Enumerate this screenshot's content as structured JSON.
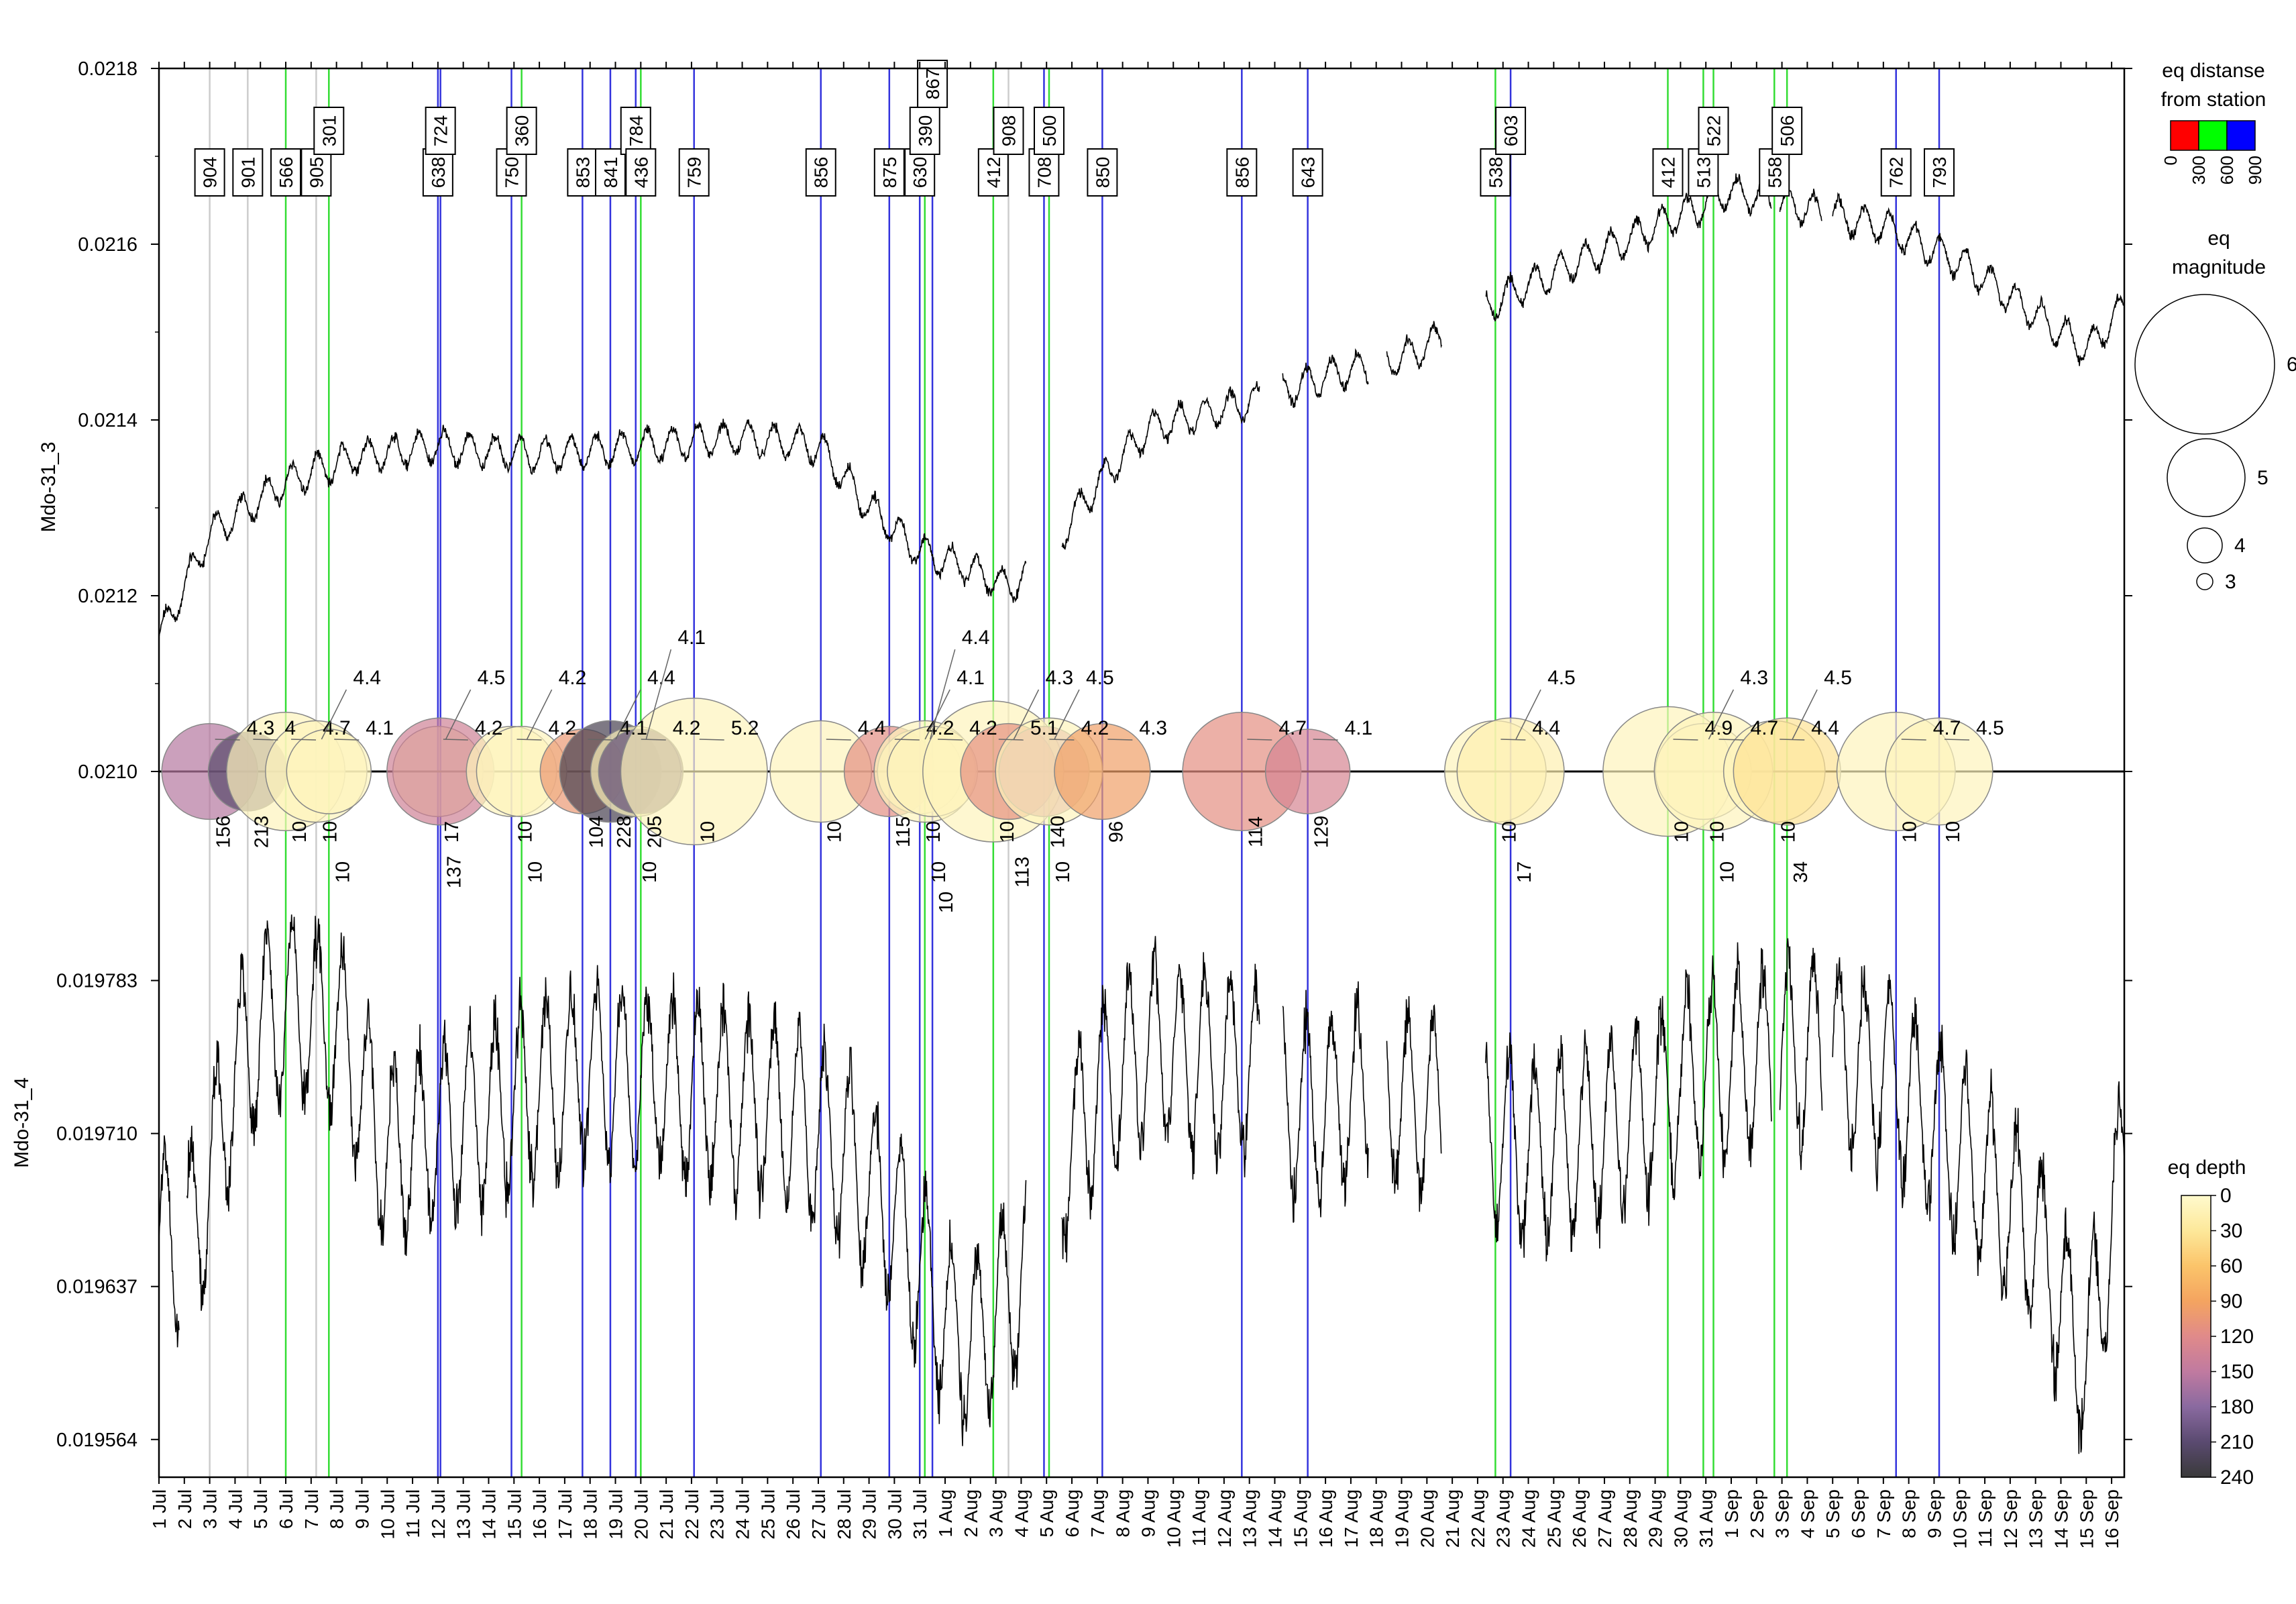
{
  "chart_data": {
    "type": "line",
    "x_range": [
      "1 Jul",
      "16 Sep"
    ],
    "x_day_range": [
      1,
      78.5
    ],
    "x_tick_labels": [
      "1 Jul",
      "2 Jul",
      "3 Jul",
      "4 Jul",
      "5 Jul",
      "6 Jul",
      "7 Jul",
      "8 Jul",
      "9 Jul",
      "10 Jul",
      "11 Jul",
      "12 Jul",
      "13 Jul",
      "14 Jul",
      "15 Jul",
      "16 Jul",
      "17 Jul",
      "18 Jul",
      "19 Jul",
      "20 Jul",
      "21 Jul",
      "22 Jul",
      "23 Jul",
      "24 Jul",
      "25 Jul",
      "26 Jul",
      "27 Jul",
      "28 Jul",
      "29 Jul",
      "30 Jul",
      "31 Jul",
      "1 Aug",
      "2 Aug",
      "3 Aug",
      "4 Aug",
      "5 Aug",
      "6 Aug",
      "7 Aug",
      "8 Aug",
      "9 Aug",
      "10 Aug",
      "11 Aug",
      "12 Aug",
      "13 Aug",
      "14 Aug",
      "15 Aug",
      "16 Aug",
      "17 Aug",
      "18 Aug",
      "19 Aug",
      "20 Aug",
      "21 Aug",
      "22 Aug",
      "23 Aug",
      "24 Aug",
      "25 Aug",
      "26 Aug",
      "27 Aug",
      "28 Aug",
      "29 Aug",
      "30 Aug",
      "31 Aug",
      "1 Sep",
      "2 Sep",
      "3 Sep",
      "4 Sep",
      "5 Sep",
      "6 Sep",
      "7 Sep",
      "8 Sep",
      "9 Sep",
      "10 Sep",
      "11 Sep",
      "12 Sep",
      "13 Sep",
      "14 Sep",
      "15 Sep",
      "16 Sep"
    ],
    "y_tick_labels": [
      "0.0218",
      "0.0216",
      "0.0214",
      "0.0212",
      "0.0210",
      "0.019783",
      "0.019710",
      "0.019637",
      "0.019564"
    ],
    "panels": [
      {
        "name": "Mdo-31_3",
        "ylabel": "Mdo-31_3",
        "ylim": [
          0.021,
          0.0218
        ],
        "ticks": [
          0.0218,
          0.0216,
          0.0214,
          0.0212,
          0.021
        ]
      },
      {
        "name": "Mdo-31_4",
        "ylabel": "Mdo-31_4",
        "ylim": [
          0.019546,
          0.01982
        ],
        "ticks": [
          0.019783,
          0.01971,
          0.019637,
          0.019564
        ]
      }
    ],
    "series": [
      {
        "name": "Mdo-31_3",
        "description": "slow rise with diurnal oscillation",
        "trend_days": [
          1,
          3,
          6,
          9,
          12,
          16,
          20,
          24,
          27,
          29,
          31,
          33,
          34.5,
          36,
          37.5,
          40,
          44,
          47,
          50,
          52,
          54,
          57,
          60,
          63,
          66,
          69,
          72,
          75,
          77,
          78.5
        ],
        "trend_values": [
          0.02115,
          0.02127,
          0.02133,
          0.02136,
          0.02137,
          0.02136,
          0.02137,
          0.02138,
          0.02137,
          0.0213,
          0.02125,
          0.02123,
          0.02121,
          0.02124,
          0.02131,
          0.02139,
          0.02142,
          0.02145,
          0.02147,
          0.0215,
          0.02154,
          0.02158,
          0.02162,
          0.02166,
          0.02164,
          0.02162,
          0.02158,
          0.02152,
          0.02148,
          0.02153
        ],
        "gaps": [
          [
            35.2,
            36.6
          ],
          [
            44.4,
            45.3
          ],
          [
            48.7,
            49.4
          ],
          [
            51.6,
            53.3
          ],
          [
            64.6,
            64.9
          ],
          [
            66.6,
            67.0
          ]
        ]
      },
      {
        "name": "Mdo-31_4",
        "description": "strong diurnal oscillation",
        "trend_days": [
          1,
          2,
          3,
          4,
          5,
          6,
          8,
          10,
          14,
          18,
          22,
          26,
          28,
          30,
          32,
          33,
          35,
          36,
          38,
          40,
          44,
          46,
          49,
          52,
          55,
          58,
          62,
          66,
          69,
          72,
          75,
          77,
          78.5
        ],
        "trend_values": [
          0.019658,
          0.01965,
          0.01969,
          0.01974,
          0.01976,
          0.01977,
          0.01976,
          0.0197,
          0.01972,
          0.01974,
          0.01973,
          0.01972,
          0.0197,
          0.01967,
          0.01962,
          0.01961,
          0.01964,
          0.01968,
          0.01973,
          0.01975,
          0.01974,
          0.01972,
          0.01973,
          0.01972,
          0.0197,
          0.01971,
          0.01974,
          0.01975,
          0.01974,
          0.0197,
          0.01966,
          0.0196,
          0.0197
        ],
        "gaps": [
          [
            1.8,
            2.1
          ],
          [
            35.2,
            36.6
          ],
          [
            44.4,
            45.3
          ],
          [
            48.7,
            49.4
          ],
          [
            51.6,
            53.3
          ],
          [
            64.6,
            64.9
          ],
          [
            66.6,
            67.0
          ]
        ]
      }
    ],
    "earthquakes": [
      {
        "day": 3.0,
        "distance": 904,
        "depth": 156,
        "magnitude": 4.3
      },
      {
        "day": 4.5,
        "distance": 901,
        "depth": 213,
        "magnitude": 4.0
      },
      {
        "day": 6.0,
        "distance": 566,
        "depth": 10,
        "magnitude": 4.7
      },
      {
        "day": 7.2,
        "distance": 905,
        "depth": 10,
        "magnitude": 4.4
      },
      {
        "day": 7.7,
        "distance": 301,
        "depth": 10,
        "magnitude": 4.1
      },
      {
        "day": 12.0,
        "distance": 638,
        "depth": 17,
        "magnitude": 4.2
      },
      {
        "day": 12.1,
        "distance": 724,
        "depth": 137,
        "magnitude": 4.5
      },
      {
        "day": 14.9,
        "distance": 750,
        "depth": 10,
        "magnitude": 4.2
      },
      {
        "day": 15.3,
        "distance": 360,
        "depth": 10,
        "magnitude": 4.2
      },
      {
        "day": 17.7,
        "distance": 853,
        "depth": 104,
        "magnitude": 4.1
      },
      {
        "day": 18.8,
        "distance": 841,
        "depth": 228,
        "magnitude": 4.4
      },
      {
        "day": 19.8,
        "distance": 784,
        "depth": 10,
        "magnitude": 4.2
      },
      {
        "day": 20.0,
        "distance": 436,
        "depth": 205,
        "magnitude": 4.1
      },
      {
        "day": 22.1,
        "distance": 759,
        "depth": 10,
        "magnitude": 5.2
      },
      {
        "day": 27.1,
        "distance": 856,
        "depth": 10,
        "magnitude": 4.4
      },
      {
        "day": 29.8,
        "distance": 875,
        "depth": 115,
        "magnitude": 4.2
      },
      {
        "day": 31.0,
        "distance": 630,
        "depth": 10,
        "magnitude": 4.1
      },
      {
        "day": 31.2,
        "distance": 390,
        "depth": 10,
        "magnitude": 4.4
      },
      {
        "day": 31.5,
        "distance": 867,
        "depth": 10,
        "magnitude": 4.2
      },
      {
        "day": 33.9,
        "distance": 412,
        "depth": 10,
        "magnitude": 5.1
      },
      {
        "day": 34.5,
        "distance": 908,
        "depth": 113,
        "magnitude": 4.3
      },
      {
        "day": 35.9,
        "distance": 708,
        "depth": 140,
        "magnitude": 4.2
      },
      {
        "day": 36.1,
        "distance": 500,
        "depth": 10,
        "magnitude": 4.5
      },
      {
        "day": 38.2,
        "distance": 850,
        "depth": 96,
        "magnitude": 4.3
      },
      {
        "day": 43.7,
        "distance": 856,
        "depth": 114,
        "magnitude": 4.7
      },
      {
        "day": 46.3,
        "distance": 643,
        "depth": 129,
        "magnitude": 4.1
      },
      {
        "day": 53.7,
        "distance": 538,
        "depth": 10,
        "magnitude": 4.4
      },
      {
        "day": 54.3,
        "distance": 603,
        "depth": 17,
        "magnitude": 4.5
      },
      {
        "day": 60.5,
        "distance": 412,
        "depth": 10,
        "magnitude": 4.9
      },
      {
        "day": 61.9,
        "distance": 513,
        "depth": 10,
        "magnitude": 4.3
      },
      {
        "day": 62.3,
        "distance": 522,
        "depth": 10,
        "magnitude": 4.7
      },
      {
        "day": 64.7,
        "distance": 558,
        "depth": 10,
        "magnitude": 4.4
      },
      {
        "day": 65.2,
        "distance": 506,
        "depth": 34,
        "magnitude": 4.5
      },
      {
        "day": 69.5,
        "distance": 762,
        "depth": 10,
        "magnitude": 4.7
      },
      {
        "day": 71.2,
        "distance": 793,
        "depth": 10,
        "magnitude": 4.5
      }
    ],
    "legend_distance": {
      "title_line1": "eq distanse",
      "title_line2": "from station",
      "colors": [
        "#ff0000",
        "#00ff00",
        "#0000ff"
      ],
      "labels": [
        "0",
        "300",
        "600",
        "900"
      ]
    },
    "legend_magnitude": {
      "title_line1": "eq",
      "title_line2": "magnitude",
      "labels": [
        "6",
        "5",
        "4",
        "3"
      ]
    },
    "legend_depth": {
      "title": "eq depth",
      "labels": [
        "0",
        "30",
        "60",
        "90",
        "120",
        "150",
        "180",
        "210",
        "240"
      ],
      "colors": [
        "#fffacd",
        "#fde89a",
        "#fbc46a",
        "#f4a460",
        "#e08a8a",
        "#c07aa0",
        "#8a6aa0",
        "#5a4a70",
        "#3a3a3a"
      ]
    }
  }
}
